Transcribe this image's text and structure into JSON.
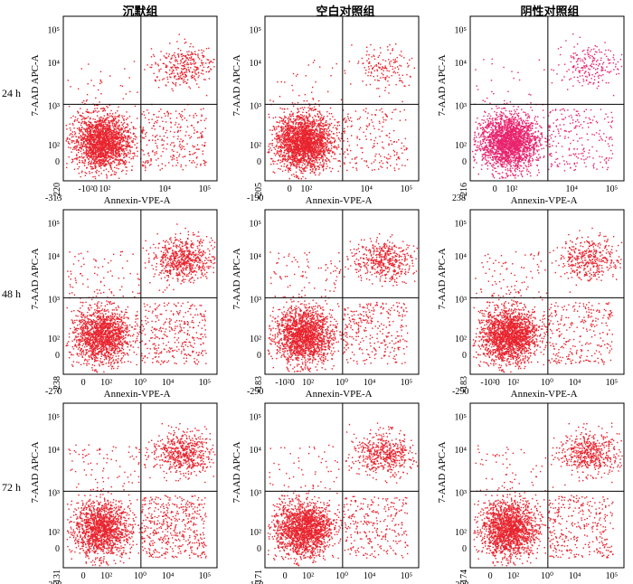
{
  "columns": [
    "沉默组",
    "空白对照组",
    "阴性对照组"
  ],
  "rows": [
    "24 h",
    "48 h",
    "72 h"
  ],
  "xlabel": "Annexin-VPE-A",
  "ylabel": "7-AAD APC-A",
  "chart_data": [
    {
      "type": "scatter",
      "row": "24 h",
      "column": "沉默组",
      "xlabel": "Annexin-VPE-A",
      "ylabel": "7-AAD APC-A",
      "xticks": [
        "-10²0",
        "10²",
        "10⁴",
        "10⁵"
      ],
      "yticks": [
        "10⁵",
        "10⁴",
        "10³",
        "10²",
        "0",
        "-220"
      ],
      "x_min_label": "-313",
      "y_min_label": "-220",
      "xscale": "biexponential",
      "yscale": "biexponential",
      "gate_lines": "quadrant",
      "quadrants_percent_estimated": {
        "UL": 1,
        "UR": 12,
        "LL": 77,
        "LR": 10
      },
      "main_cluster_center": {
        "x": 20,
        "y": 150
      },
      "color": "#e8242e"
    },
    {
      "type": "scatter",
      "row": "24 h",
      "column": "空白对照组",
      "xlabel": "Annexin-VPE-A",
      "ylabel": "7-AAD APC-A",
      "xticks": [
        "0",
        "10²",
        "10⁴",
        "10⁵"
      ],
      "yticks": [
        "10⁵",
        "10⁴",
        "10³",
        "10²",
        "0",
        "-205"
      ],
      "x_min_label": "-190",
      "y_min_label": "-205",
      "xscale": "biexponential",
      "yscale": "biexponential",
      "gate_lines": "quadrant",
      "quadrants_percent_estimated": {
        "UL": 1,
        "UR": 6,
        "LL": 86,
        "LR": 7
      },
      "main_cluster_center": {
        "x": 30,
        "y": 150
      },
      "color": "#e8242e"
    },
    {
      "type": "scatter",
      "row": "24 h",
      "column": "阴性对照组",
      "xlabel": "Annexin-VPE-A",
      "ylabel": "7-AAD APC-A",
      "xticks": [
        "0",
        "10²",
        "10⁴",
        "10⁵"
      ],
      "yticks": [
        "10⁵",
        "10⁴",
        "10³",
        "10²",
        "0",
        "-216"
      ],
      "x_min_label": "238",
      "y_min_label": "-216",
      "xscale": "biexponential",
      "yscale": "biexponential",
      "gate_lines": "quadrant",
      "quadrants_percent_estimated": {
        "UL": 1,
        "UR": 8,
        "LL": 83,
        "LR": 8
      },
      "main_cluster_center": {
        "x": 60,
        "y": 150
      },
      "color": "#e8246e"
    },
    {
      "type": "scatter",
      "row": "48 h",
      "column": "沉默组",
      "xlabel": "Annexin-VPE-A",
      "ylabel": "7-AAD APC-A",
      "xticks": [
        "0",
        "10²",
        "10⁰",
        "10⁴",
        "10⁵"
      ],
      "yticks": [
        "10⁵",
        "10⁴",
        "10³",
        "10²",
        "0",
        "-238"
      ],
      "x_min_label": "-270",
      "y_min_label": "-238",
      "xscale": "biexponential",
      "yscale": "biexponential",
      "gate_lines": "quadrant",
      "quadrants_percent_estimated": {
        "UL": 3,
        "UR": 25,
        "LL": 60,
        "LR": 12
      },
      "main_cluster_center": {
        "x": 20,
        "y": 180
      },
      "color": "#e8242e"
    },
    {
      "type": "scatter",
      "row": "48 h",
      "column": "空白对照组",
      "xlabel": "Annexin-VPE-A",
      "ylabel": "7-AAD APC-A",
      "xticks": [
        "-10²0",
        "10²",
        "10⁰",
        "10⁴",
        "10⁵"
      ],
      "yticks": [
        "10⁵",
        "10⁴",
        "10³",
        "10²",
        "0",
        "-183"
      ],
      "x_min_label": "-290",
      "y_min_label": "-183",
      "xscale": "biexponential",
      "yscale": "biexponential",
      "gate_lines": "quadrant",
      "quadrants_percent_estimated": {
        "UL": 3,
        "UR": 18,
        "LL": 68,
        "LR": 11
      },
      "main_cluster_center": {
        "x": 30,
        "y": 170
      },
      "color": "#e8242e"
    },
    {
      "type": "scatter",
      "row": "48 h",
      "column": "阴性对照组",
      "xlabel": "Annexin-VPE-A",
      "ylabel": "7-AAD APC-A",
      "xticks": [
        "-10²0",
        "10²",
        "10⁰",
        "10⁴",
        "10⁵"
      ],
      "yticks": [
        "10⁵",
        "10⁴",
        "10³",
        "10²",
        "0",
        "-183"
      ],
      "x_min_label": "-290",
      "y_min_label": "-183",
      "xscale": "biexponential",
      "yscale": "biexponential",
      "gate_lines": "quadrant",
      "quadrants_percent_estimated": {
        "UL": 3,
        "UR": 15,
        "LL": 72,
        "LR": 10
      },
      "main_cluster_center": {
        "x": 30,
        "y": 170
      },
      "color": "#e8242e"
    },
    {
      "type": "scatter",
      "row": "72 h",
      "column": "沉默组",
      "xlabel": "Annexin-VPE-A",
      "ylabel": "7-AAD APC-A",
      "xticks": [
        "0",
        "10²",
        "10⁰",
        "10⁴",
        "10⁵"
      ],
      "yticks": [
        "10⁵",
        "10⁴",
        "10³",
        "10²",
        "0",
        "-131"
      ],
      "x_min_label": "-208",
      "y_min_label": "-131",
      "xscale": "biexponential",
      "yscale": "biexponential",
      "gate_lines": "quadrant",
      "quadrants_percent_estimated": {
        "UL": 3,
        "UR": 22,
        "LL": 58,
        "LR": 17
      },
      "main_cluster_center": {
        "x": 25,
        "y": 130
      },
      "color": "#e8242e"
    },
    {
      "type": "scatter",
      "row": "72 h",
      "column": "空白对照组",
      "xlabel": "Annexin-VPE-A",
      "ylabel": "7-AAD APC-A",
      "xticks": [
        "0",
        "10²",
        "10⁰",
        "10⁴",
        "10⁵"
      ],
      "yticks": [
        "10⁵",
        "10⁴",
        "10³",
        "10²",
        "0",
        "-171"
      ],
      "x_min_label": "-168",
      "y_min_label": "-171",
      "xscale": "biexponential",
      "yscale": "biexponential",
      "gate_lines": "quadrant",
      "quadrants_percent_estimated": {
        "UL": 2,
        "UR": 20,
        "LL": 68,
        "LR": 10
      },
      "main_cluster_center": {
        "x": 25,
        "y": 110
      },
      "color": "#e8242e"
    },
    {
      "type": "scatter",
      "row": "72 h",
      "column": "阴性对照组",
      "xlabel": "Annexin-VPE-A",
      "ylabel": "7-AAD APC-A",
      "xticks": [
        "0",
        "10²",
        "10⁰",
        "10⁴",
        "10⁵"
      ],
      "yticks": [
        "10⁵",
        "10⁴",
        "10³",
        "10²",
        "0",
        "-174"
      ],
      "x_min_label": "-208",
      "y_min_label": "-174",
      "xscale": "biexponential",
      "yscale": "biexponential",
      "gate_lines": "quadrant",
      "quadrants_percent_estimated": {
        "UL": 2,
        "UR": 20,
        "LL": 66,
        "LR": 12
      },
      "main_cluster_center": {
        "x": 25,
        "y": 110
      },
      "color": "#e8242e"
    }
  ]
}
